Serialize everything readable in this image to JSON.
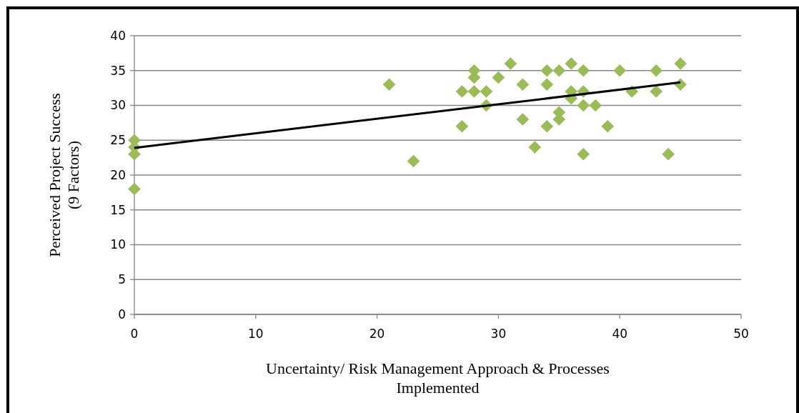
{
  "chart_data": {
    "type": "scatter",
    "xlabel": "Uncertainty/ Risk Management Approach & Processes Implemented",
    "ylabel": "Perceived Project Success (9 Factors)",
    "xlim": [
      0,
      50
    ],
    "xticks": [
      0,
      10,
      20,
      30,
      40,
      50
    ],
    "ylim": [
      0,
      40
    ],
    "yticks": [
      0,
      5,
      10,
      15,
      20,
      25,
      30,
      35,
      40
    ],
    "grid": "y",
    "marker": "diamond",
    "series": [
      {
        "color": "#9bbb59",
        "x": [
          0,
          0,
          0,
          0,
          21,
          23,
          27,
          27,
          28,
          28,
          28,
          29,
          29,
          30,
          31,
          32,
          32,
          33,
          34,
          34,
          34,
          35,
          35,
          35,
          36,
          36,
          36,
          37,
          37,
          37,
          37,
          38,
          39,
          40,
          41,
          43,
          43,
          44,
          45,
          45
        ],
        "values": [
          25,
          24,
          23,
          18,
          33,
          22,
          32,
          27,
          35,
          34,
          32,
          32,
          30,
          34,
          36,
          33,
          28,
          24,
          35,
          33,
          27,
          35,
          29,
          28,
          36,
          32,
          31,
          35,
          32,
          30,
          23,
          30,
          27,
          35,
          32,
          35,
          32,
          23,
          36,
          33
        ]
      },
      {
        "type": "line",
        "marker": "none",
        "color": "#000000",
        "x": [
          0,
          45
        ],
        "values": [
          23.9,
          33.3
        ]
      }
    ]
  }
}
